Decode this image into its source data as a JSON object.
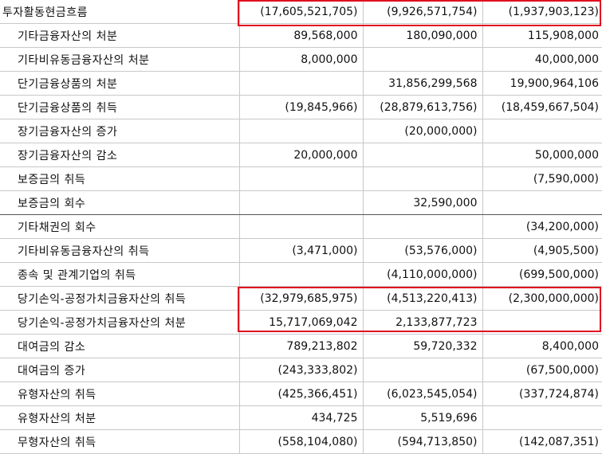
{
  "rows": [
    {
      "label": "투자활동현금흐름",
      "v1": "(17,605,521,705)",
      "v2": "(9,926,571,754)",
      "v3": "(1,937,903,123)"
    },
    {
      "label": "기타금융자산의 처분",
      "v1": "89,568,000",
      "v2": "180,090,000",
      "v3": "115,908,000"
    },
    {
      "label": "기타비유동금융자산의 처분",
      "v1": "8,000,000",
      "v2": "",
      "v3": "40,000,000"
    },
    {
      "label": "단기금융상품의 처분",
      "v1": "",
      "v2": "31,856,299,568",
      "v3": "19,900,964,106"
    },
    {
      "label": "단기금융상품의 취득",
      "v1": "(19,845,966)",
      "v2": "(28,879,613,756)",
      "v3": "(18,459,667,504)"
    },
    {
      "label": "장기금융자산의 증가",
      "v1": "",
      "v2": "(20,000,000)",
      "v3": ""
    },
    {
      "label": "장기금융자산의 감소",
      "v1": "20,000,000",
      "v2": "",
      "v3": "50,000,000"
    },
    {
      "label": "보증금의 취득",
      "v1": "",
      "v2": "",
      "v3": "(7,590,000)"
    },
    {
      "label": "보증금의 회수",
      "v1": "",
      "v2": "32,590,000",
      "v3": ""
    },
    {
      "label": "기타채권의 회수",
      "v1": "",
      "v2": "",
      "v3": "(34,200,000)"
    },
    {
      "label": "기타비유동금융자산의 취득",
      "v1": "(3,471,000)",
      "v2": "(53,576,000)",
      "v3": "(4,905,500)"
    },
    {
      "label": "종속 및 관계기업의 취득",
      "v1": "",
      "v2": "(4,110,000,000)",
      "v3": "(699,500,000)"
    },
    {
      "label": "당기손익-공정가치금융자산의 취득",
      "v1": "(32,979,685,975)",
      "v2": "(4,513,220,413)",
      "v3": "(2,300,000,000)"
    },
    {
      "label": "당기손익-공정가치금융자산의 처분",
      "v1": "15,717,069,042",
      "v2": "2,133,877,723",
      "v3": ""
    },
    {
      "label": "대여금의 감소",
      "v1": "789,213,802",
      "v2": "59,720,332",
      "v3": "8,400,000"
    },
    {
      "label": "대여금의 증가",
      "v1": "(243,333,802)",
      "v2": "",
      "v3": "(67,500,000)"
    },
    {
      "label": "유형자산의 취득",
      "v1": "(425,366,451)",
      "v2": "(6,023,545,054)",
      "v3": "(337,724,874)"
    },
    {
      "label": "유형자산의 처분",
      "v1": "434,725",
      "v2": "5,519,696",
      "v3": ""
    },
    {
      "label": "무형자산의 취득",
      "v1": "(558,104,080)",
      "v2": "(594,713,850)",
      "v3": "(142,087,351)"
    }
  ]
}
